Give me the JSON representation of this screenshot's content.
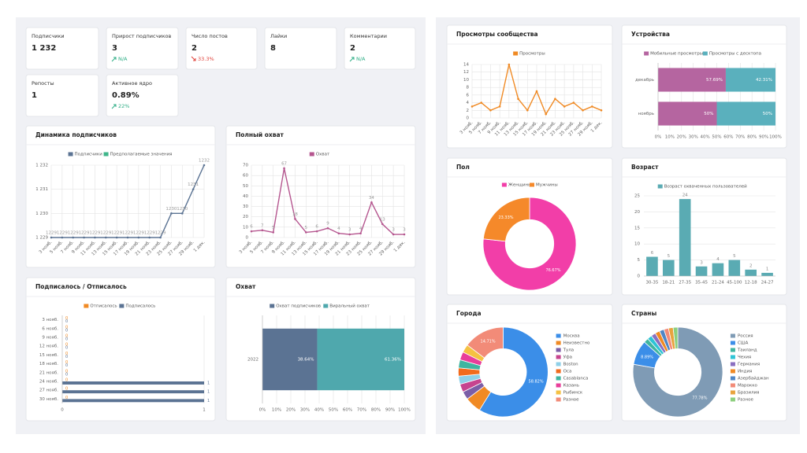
{
  "stats": [
    {
      "label": "Подписчики",
      "value": "1 232"
    },
    {
      "label": "Прирост подписчиков",
      "value": "3",
      "delta": "N/A",
      "trend": "up"
    },
    {
      "label": "Число постов",
      "value": "2",
      "delta": "33.3%",
      "trend": "down"
    },
    {
      "label": "Лайки",
      "value": "8"
    },
    {
      "label": "Комментарии",
      "value": "2",
      "delta": "N/A",
      "trend": "up"
    },
    {
      "label": "Репосты",
      "value": "1"
    },
    {
      "label": "Активное ядро",
      "value": "0.89%",
      "delta": "22%",
      "trend": "up"
    }
  ],
  "chart_data": [
    {
      "type": "line",
      "title": "Динамика подписчиков",
      "categories": [
        "3 нояб.",
        "5 нояб.",
        "7 нояб.",
        "9 нояб.",
        "11 нояб.",
        "13 нояб.",
        "15 нояб.",
        "17 нояб.",
        "19 нояб.",
        "21 нояб.",
        "23 нояб.",
        "25 нояб.",
        "27 нояб.",
        "29 нояб.",
        "1 дек."
      ],
      "series": [
        {
          "name": "Подписчики",
          "color": "#5b7393",
          "values": [
            1229,
            1229,
            1229,
            1229,
            1229,
            1229,
            1229,
            1229,
            1229,
            1229,
            1229,
            1230,
            1230,
            1231,
            1232
          ]
        },
        {
          "name": "Предполагаемые значения",
          "color": "#3fb58a",
          "values": [
            null,
            null,
            null,
            null,
            null,
            null,
            null,
            null,
            null,
            null,
            null,
            null,
            null,
            null,
            null
          ]
        }
      ],
      "ylim": [
        1229,
        1232
      ],
      "yticks": [
        {
          "value": 1229,
          "label": "1 229"
        },
        {
          "value": 1230,
          "label": "1 230"
        },
        {
          "value": 1231,
          "label": "1 231"
        },
        {
          "value": 1232,
          "label": "1 232"
        }
      ],
      "grid": true,
      "show_values": true,
      "legend": "top"
    },
    {
      "type": "line",
      "title": "Полный охват",
      "categories": [
        "3 нояб.",
        "5 нояб.",
        "7 нояб.",
        "9 нояб.",
        "11 нояб.",
        "13 нояб.",
        "15 нояб.",
        "17 нояб.",
        "19 нояб.",
        "21 нояб.",
        "23 нояб.",
        "25 нояб.",
        "27 нояб.",
        "29 нояб.",
        "1 дек."
      ],
      "series": [
        {
          "name": "Охват",
          "color": "#b5568f",
          "values": [
            6,
            7,
            5,
            67,
            18,
            5,
            6,
            9,
            4,
            3,
            4,
            34,
            13,
            3,
            3
          ]
        }
      ],
      "ylim": [
        0,
        70
      ],
      "yticks": [
        0,
        10,
        20,
        30,
        40,
        50,
        60,
        70
      ],
      "grid": true,
      "show_values": true,
      "legend": "top"
    },
    {
      "type": "bar",
      "title": "Подписалось / Отписалось",
      "horizontal": true,
      "categories": [
        "3 нояб.",
        "6 нояб.",
        "9 нояб.",
        "12 нояб.",
        "15 нояб.",
        "18 нояб.",
        "21 нояб.",
        "24 нояб.",
        "27 нояб.",
        "30 нояб."
      ],
      "series": [
        {
          "name": "Отписалось",
          "color": "#f08a24",
          "values": [
            0,
            0,
            0,
            0,
            0,
            0,
            0,
            0,
            0,
            0
          ]
        },
        {
          "name": "Подписалось",
          "color": "#5b7393",
          "values": [
            0,
            0,
            0,
            0,
            0,
            0,
            0,
            1,
            1,
            1
          ]
        }
      ],
      "xlim": [
        0,
        1
      ],
      "xticks": [
        0,
        1
      ],
      "grid": true,
      "show_values": true,
      "legend": "top"
    },
    {
      "type": "bar",
      "title": "Охват",
      "horizontal": true,
      "stacked": true,
      "categories": [
        "2022"
      ],
      "series": [
        {
          "name": "Охват подписчиков",
          "color": "#5b7393",
          "values": [
            38.64
          ],
          "value_labels": [
            "38.64%"
          ]
        },
        {
          "name": "Виральный охват",
          "color": "#4fa8ad",
          "values": [
            61.36
          ],
          "value_labels": [
            "61.36%"
          ]
        }
      ],
      "xlim": [
        0,
        100
      ],
      "xticks": [
        {
          "value": 0,
          "label": "0%"
        },
        {
          "value": 10,
          "label": "10%"
        },
        {
          "value": 20,
          "label": "20%"
        },
        {
          "value": 30,
          "label": "30%"
        },
        {
          "value": 40,
          "label": "40%"
        },
        {
          "value": 50,
          "label": "50%"
        },
        {
          "value": 60,
          "label": "60%"
        },
        {
          "value": 70,
          "label": "70%"
        },
        {
          "value": 80,
          "label": "80%"
        },
        {
          "value": 90,
          "label": "90%"
        },
        {
          "value": 100,
          "label": "100%"
        }
      ],
      "grid": true,
      "legend": "top"
    },
    {
      "type": "line",
      "title": "Просмотры сообщества",
      "categories": [
        "3 нояб.",
        "5 нояб.",
        "7 нояб.",
        "9 нояб.",
        "11 нояб.",
        "13 нояб.",
        "15 нояб.",
        "17 нояб.",
        "19 нояб.",
        "21 нояб.",
        "23 нояб.",
        "25 нояб.",
        "27 нояб.",
        "29 нояб.",
        "1 дек."
      ],
      "series": [
        {
          "name": "Просмотры",
          "color": "#f08a24",
          "values": [
            3,
            4,
            2,
            3,
            14,
            5,
            2,
            7,
            1,
            5,
            3,
            4,
            2,
            3,
            2
          ]
        }
      ],
      "ylim": [
        0,
        14
      ],
      "yticks": [
        0,
        2,
        4,
        6,
        8,
        10,
        12,
        14
      ],
      "grid": true,
      "legend": "top"
    },
    {
      "type": "bar",
      "title": "Устройства",
      "horizontal": true,
      "stacked": true,
      "categories": [
        "декабрь",
        "ноябрь"
      ],
      "series": [
        {
          "name": "Мобильные просмотры",
          "color": "#b565a0",
          "values": [
            57.69,
            50
          ],
          "value_labels": [
            "57.69%",
            "50%"
          ]
        },
        {
          "name": "Просмотры с десктопа",
          "color": "#5ab0bd",
          "values": [
            42.31,
            50
          ],
          "value_labels": [
            "42.31%",
            "50%"
          ]
        }
      ],
      "xlim": [
        0,
        100
      ],
      "xticks": [
        {
          "value": 0,
          "label": "0%"
        },
        {
          "value": 10,
          "label": "10%"
        },
        {
          "value": 20,
          "label": "20%"
        },
        {
          "value": 30,
          "label": "30%"
        },
        {
          "value": 40,
          "label": "40%"
        },
        {
          "value": 50,
          "label": "50%"
        },
        {
          "value": 60,
          "label": "60%"
        },
        {
          "value": 70,
          "label": "70%"
        },
        {
          "value": 80,
          "label": "80%"
        },
        {
          "value": 90,
          "label": "90%"
        },
        {
          "value": 100,
          "label": "100%"
        }
      ],
      "grid": true,
      "legend": "top"
    },
    {
      "type": "pie",
      "title": "Пол",
      "donut": true,
      "legend": "top",
      "categories": [
        "Женщины",
        "Мужчины"
      ],
      "values": [
        76.67,
        23.33
      ],
      "value_labels": [
        "76.67%",
        "23.33%"
      ],
      "colors": [
        "#f23ea8",
        "#f5892a"
      ]
    },
    {
      "type": "bar",
      "title": "Возраст",
      "categories": [
        "30-35",
        "18-21",
        "27-35",
        "35-45",
        "21-24",
        "45-100",
        "12-18",
        "24-27"
      ],
      "series": [
        {
          "name": "Возраст охваченных пользователей",
          "color": "#5aabb3",
          "values": [
            6,
            5,
            24,
            3,
            4,
            5,
            2,
            1
          ]
        }
      ],
      "ylim": [
        0,
        25
      ],
      "yticks": [
        0,
        5,
        10,
        15,
        20,
        25
      ],
      "grid": true,
      "show_values": true,
      "legend": "top"
    },
    {
      "type": "pie",
      "title": "Города",
      "donut": true,
      "legend": "right",
      "categories": [
        "Москва",
        "Неизвестно",
        "Тула",
        "Уфа",
        "Boston",
        "Оса",
        "Casablanca",
        "Казань",
        "Рыбинск",
        "Разное"
      ],
      "values": [
        58.82,
        5.88,
        2.94,
        2.94,
        2.94,
        2.94,
        2.94,
        2.94,
        2.94,
        14.71
      ],
      "value_labels": [
        "58.82%",
        null,
        null,
        null,
        null,
        null,
        null,
        null,
        null,
        "14.71%"
      ],
      "colors": [
        "#3b8ee8",
        "#f08a24",
        "#7b5ea7",
        "#c6448f",
        "#8fd0e8",
        "#f26b1d",
        "#3fb5a0",
        "#e83e9a",
        "#f5c142",
        "#f28b78"
      ]
    },
    {
      "type": "pie",
      "title": "Страны",
      "donut": true,
      "legend": "right",
      "categories": [
        "Россия",
        "США",
        "Таиланд",
        "Чехия",
        "Германия",
        "Индия",
        "Азербайджан",
        "Марокко",
        "Бразилия",
        "Разное"
      ],
      "values": [
        77.78,
        8.89,
        1.67,
        1.67,
        1.67,
        1.67,
        1.67,
        1.67,
        1.67,
        1.67
      ],
      "value_labels": [
        "77.78%",
        "8.89%",
        null,
        null,
        null,
        null,
        null,
        null,
        null,
        null
      ],
      "colors": [
        "#7f9bb5",
        "#3b8ee8",
        "#3fb5a0",
        "#2ec4d6",
        "#8a6fc0",
        "#f08a24",
        "#4f86c6",
        "#f28b78",
        "#e8a33e",
        "#8ccf7e"
      ]
    }
  ]
}
